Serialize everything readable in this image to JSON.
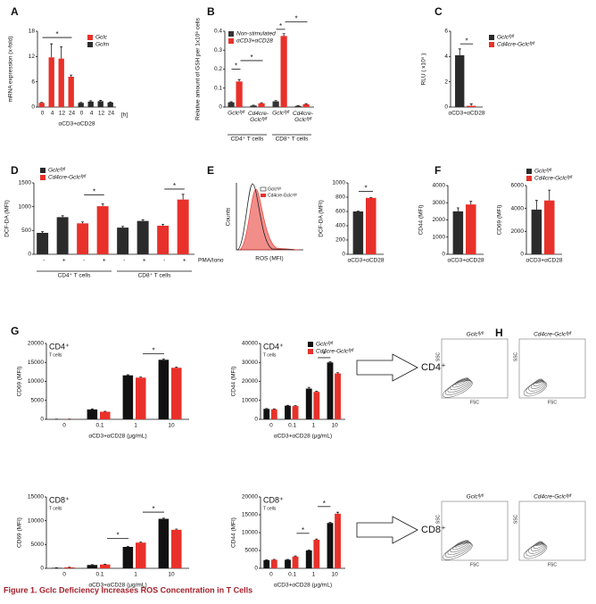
{
  "chart_data": [
    {
      "type": "bar",
      "panel": "A",
      "ylabel": "mRNA expression (x-fold)",
      "xlabel": "αCD3+αCD28",
      "unit": "[h]",
      "categories": [
        "0",
        "4",
        "12",
        "24",
        "0",
        "4",
        "12",
        "24"
      ],
      "series": [
        {
          "name": "Gclc",
          "color": "#e8312a",
          "values": [
            1,
            11.8,
            11.5,
            7.2,
            null,
            null,
            null,
            null
          ],
          "errors": [
            0.1,
            3.2,
            2.8,
            0.4,
            null,
            null,
            null,
            null
          ]
        },
        {
          "name": "Gclm",
          "color": "#2b2b2b",
          "values": [
            null,
            null,
            null,
            null,
            1,
            1.3,
            1.4,
            1.1
          ],
          "errors": [
            null,
            null,
            null,
            null,
            0.1,
            0.2,
            0.2,
            0.1
          ]
        }
      ],
      "ylim": [
        0,
        18
      ],
      "yticks": [
        0,
        6,
        12,
        18
      ],
      "annotations": [
        "*"
      ]
    },
    {
      "type": "bar",
      "panel": "B",
      "ylabel": "Relative amount of GSH per 1x10⁶ cells",
      "categories": [
        "Gclcᶠˡ/ᶠˡ",
        "Cd4cre-Gclcᶠˡ/ᶠˡ",
        "Gclcᶠˡ/ᶠˡ",
        "Cd4cre-Gclcᶠˡ/ᶠˡ"
      ],
      "groups": [
        "CD4⁺ T cells",
        "CD8⁺ T cells"
      ],
      "series": [
        {
          "name": "Non-stimulated",
          "color": "#333333",
          "values": [
            0.025,
            0.008,
            0.03,
            0.006
          ],
          "errors": [
            0.003,
            0.002,
            0.004,
            0.002
          ]
        },
        {
          "name": "αCD3+αCD28",
          "color": "#e8312a",
          "values": [
            0.135,
            0.02,
            0.375,
            0.015
          ],
          "errors": [
            0.01,
            0.003,
            0.012,
            0.003
          ]
        }
      ],
      "ylim": [
        0,
        0.4
      ],
      "yticks": [
        0,
        0.1,
        0.2,
        0.3,
        0.4
      ],
      "annotations": [
        "*"
      ]
    },
    {
      "type": "bar",
      "panel": "C",
      "ylabel": "RLU ( x10⁵ )",
      "categories": [
        "αCD3+αCD28"
      ],
      "series": [
        {
          "name": "Gclcᶠˡ/ᶠˡ",
          "color": "#2b2b2b",
          "values": [
            4.1
          ],
          "errors": [
            0.5
          ]
        },
        {
          "name": "Cd4cre-Gclcᶠˡ/ᶠˡ",
          "color": "#e8312a",
          "values": [
            0.1
          ],
          "errors": [
            0.15
          ]
        }
      ],
      "ylim": [
        0,
        6
      ],
      "yticks": [
        0,
        2,
        4,
        6
      ],
      "annotations": [
        "*"
      ]
    },
    {
      "type": "bar",
      "panel": "D",
      "ylabel": "DCF-DA (MFI)",
      "unit": "PMA/Iono",
      "categories": [
        "-",
        "+",
        "-",
        "+",
        "-",
        "+",
        "-",
        "+"
      ],
      "groups": [
        "CD4⁺ T cells",
        "CD8⁺ T cells"
      ],
      "series": [
        {
          "name": "Gclcᶠˡ/ᶠˡ",
          "color": "#2b2b2b",
          "values": [
            450,
            780,
            null,
            null,
            560,
            700,
            null,
            null
          ],
          "errors": [
            25,
            30,
            null,
            null,
            25,
            25,
            null,
            null
          ]
        },
        {
          "name": "Cd4cre-Gclcᶠˡ/ᶠˡ",
          "color": "#e8312a",
          "values": [
            null,
            null,
            650,
            1010,
            null,
            null,
            600,
            1150
          ],
          "errors": [
            null,
            null,
            30,
            50,
            null,
            null,
            30,
            110
          ]
        }
      ],
      "ylim": [
        0,
        1500
      ],
      "yticks": [
        0,
        500,
        1000,
        1500
      ],
      "annotations": [
        "*"
      ]
    },
    {
      "type": "bar",
      "ylabel": "DCF-DA (MFI)",
      "categories": [
        "αCD3+αCD28"
      ],
      "series": [
        {
          "name": "Gclcᶠˡ/ᶠˡ",
          "color": "#2b2b2b",
          "values": [
            600
          ],
          "errors": [
            5
          ]
        },
        {
          "name": "Cd4cre-Gclcᶠˡ/ᶠˡ",
          "color": "#e8312a",
          "values": [
            790
          ],
          "errors": [
            5
          ]
        }
      ],
      "ylim": [
        0,
        1000
      ],
      "yticks": [
        0,
        200,
        400,
        600,
        800,
        1000
      ],
      "annotations": [
        "*"
      ]
    },
    {
      "type": "bar",
      "panel": "F",
      "ylabel": "CD44 (MFI)",
      "categories": [
        "αCD3+αCD28"
      ],
      "series": [
        {
          "name": "Gclcᶠˡ/ᶠˡ",
          "color": "#2b2b2b",
          "values": [
            2500
          ],
          "errors": [
            200
          ]
        },
        {
          "name": "Cd4cre-Gclcᶠˡ/ᶠˡ",
          "color": "#e8312a",
          "values": [
            2900
          ],
          "errors": [
            180
          ]
        }
      ],
      "ylim": [
        0,
        4000
      ],
      "yticks": [
        0,
        1000,
        2000,
        3000,
        4000
      ]
    },
    {
      "type": "bar",
      "ylabel": "CD69 (MFI)",
      "categories": [
        "αCD3+αCD28"
      ],
      "series": [
        {
          "name": "Gclcᶠˡ/ᶠˡ",
          "color": "#2b2b2b",
          "values": [
            3900
          ],
          "errors": [
            800
          ]
        },
        {
          "name": "Cd4cre-Gclcᶠˡ/ᶠˡ",
          "color": "#e8312a",
          "values": [
            4700
          ],
          "errors": [
            900
          ]
        }
      ],
      "ylim": [
        0,
        6000
      ],
      "yticks": [
        0,
        2000,
        4000,
        6000
      ]
    },
    {
      "type": "bar",
      "panel": "G",
      "title": "CD4⁺",
      "subtitle": "T cells",
      "ylabel": "CD69 (MFI)",
      "xlabel": "αCD3+αCD28 (μg/mL)",
      "categories": [
        "0",
        "0.1",
        "1",
        "10"
      ],
      "series": [
        {
          "name": "Gclcᶠˡ/ᶠˡ",
          "color": "#111111",
          "values": [
            30,
            2600,
            11600,
            15700
          ],
          "errors": [
            10,
            150,
            150,
            250
          ]
        },
        {
          "name": "Cd4cre-Gclcᶠˡ/ᶠˡ",
          "color": "#e8312a",
          "values": [
            30,
            2000,
            11000,
            13600
          ],
          "errors": [
            10,
            120,
            150,
            200
          ]
        }
      ],
      "ylim": [
        0,
        20000
      ],
      "yticks": [
        0,
        5000,
        10000,
        15000,
        20000
      ],
      "annotations": [
        "*"
      ]
    },
    {
      "type": "bar",
      "title": "CD4⁺",
      "subtitle": "T cells",
      "ylabel": "CD44 (MFI)",
      "xlabel": "αCD3+αCD28 (μg/mL)",
      "categories": [
        "0",
        "0.1",
        "1",
        "10"
      ],
      "series": [
        {
          "name": "Gclcᶠˡ/ᶠˡ",
          "color": "#111111",
          "values": [
            5500,
            7200,
            16200,
            30000
          ],
          "errors": [
            200,
            200,
            700,
            400
          ]
        },
        {
          "name": "Cd4cre-Gclcᶠˡ/ᶠˡ",
          "color": "#e8312a",
          "values": [
            5300,
            7000,
            14500,
            24200
          ],
          "errors": [
            200,
            200,
            400,
            400
          ]
        }
      ],
      "ylim": [
        0,
        40000
      ],
      "yticks": [
        0,
        10000,
        20000,
        30000,
        40000
      ],
      "annotations": [
        "*"
      ]
    },
    {
      "type": "bar",
      "title": "CD8⁺",
      "subtitle": "T cells",
      "ylabel": "CD69 (MFI)",
      "xlabel": "αCD3+αCD28 (μg/mL)",
      "categories": [
        "0",
        "0.1",
        "1",
        "10"
      ],
      "series": [
        {
          "name": "Gclcᶠˡ/ᶠˡ",
          "color": "#111111",
          "values": [
            100,
            700,
            4500,
            10400
          ],
          "errors": [
            20,
            60,
            100,
            150
          ]
        },
        {
          "name": "Cd4cre-Gclcᶠˡ/ᶠˡ",
          "color": "#e8312a",
          "values": [
            200,
            800,
            5400,
            8100
          ],
          "errors": [
            20,
            60,
            100,
            150
          ]
        }
      ],
      "ylim": [
        0,
        15000
      ],
      "yticks": [
        0,
        5000,
        10000,
        15000
      ],
      "annotations": [
        "*"
      ]
    },
    {
      "type": "bar",
      "title": "CD8⁺",
      "subtitle": "T cells",
      "ylabel": "CD44 (MFI)",
      "xlabel": "αCD3+αCD28 (μg/mL)",
      "categories": [
        "0",
        "0.1",
        "1",
        "10"
      ],
      "series": [
        {
          "name": "Gclcᶠˡ/ᶠˡ",
          "color": "#111111",
          "values": [
            2300,
            2400,
            5000,
            12700
          ],
          "errors": [
            100,
            100,
            150,
            200
          ]
        },
        {
          "name": "Cd4cre-Gclcᶠˡ/ᶠˡ",
          "color": "#e8312a",
          "values": [
            2400,
            3300,
            8000,
            15300
          ],
          "errors": [
            100,
            150,
            200,
            400
          ]
        }
      ],
      "ylim": [
        0,
        20000
      ],
      "yticks": [
        0,
        5000,
        10000,
        15000,
        20000
      ],
      "annotations": [
        "*"
      ]
    }
  ],
  "histogram": {
    "panel": "E",
    "ylabel": "Counts",
    "xlabel": "ROS (MFI)",
    "legend": [
      "Gclcᶠˡ/ᶠˡ",
      "Cd4cre-Gclcᶠˡ/ᶠˡ"
    ]
  },
  "flow": {
    "panel": "H",
    "rows": [
      "CD4⁺",
      "CD8⁺"
    ],
    "columns": [
      "Gclcᶠˡ/ᶠˡ",
      "Cd4cre-Gclcᶠˡ/ᶠˡ"
    ],
    "xlabel": "FSC",
    "ylabel": "SSC"
  },
  "caption": "Figure 1. Gclc Deficiency Increases ROS Concentration in T Cells"
}
